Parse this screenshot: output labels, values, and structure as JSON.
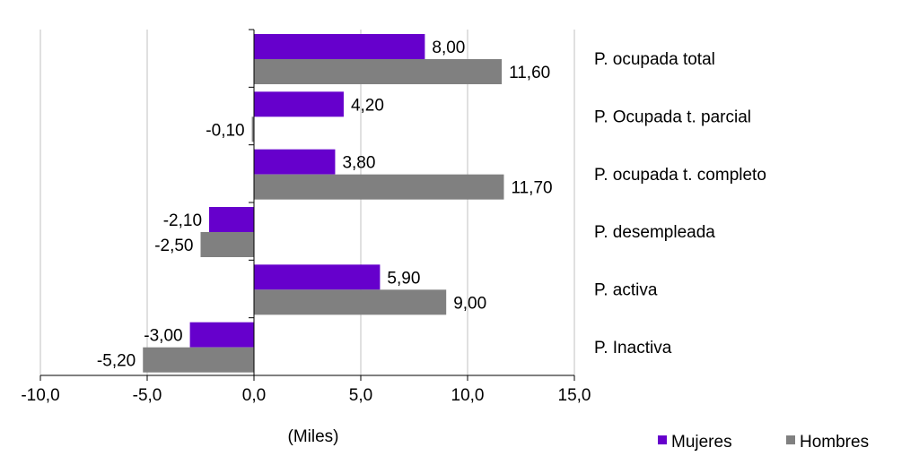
{
  "chart_data": {
    "type": "bar",
    "orientation": "horizontal",
    "categories": [
      "P. ocupada total",
      "P. Ocupada t. parcial",
      "P. ocupada t. completo",
      "P. desempleada",
      "P. activa",
      "P. Inactiva"
    ],
    "series": [
      {
        "name": "Mujeres",
        "color": "#6600CC",
        "values": [
          8.0,
          4.2,
          3.8,
          -2.1,
          5.9,
          -3.0
        ],
        "labels": [
          "8,00",
          "4,20",
          "3,80",
          "-2,10",
          "5,90",
          "-3,00"
        ]
      },
      {
        "name": "Hombres",
        "color": "#808080",
        "values": [
          11.6,
          -0.1,
          11.7,
          -2.5,
          9.0,
          -5.2
        ],
        "labels": [
          "11,60",
          "-0,10",
          "11,70",
          "-2,50",
          "9,00",
          "-5,20"
        ]
      }
    ],
    "xlim": [
      -10,
      15
    ],
    "xticks": [
      -10,
      -5,
      0,
      5,
      10,
      15
    ],
    "xtick_labels": [
      "-10,0",
      "-5,0",
      "0,0",
      "5,0",
      "10,0",
      "15,0"
    ],
    "xlabel": "(Miles)",
    "grid": "vertical",
    "legend": "bottom-right"
  }
}
